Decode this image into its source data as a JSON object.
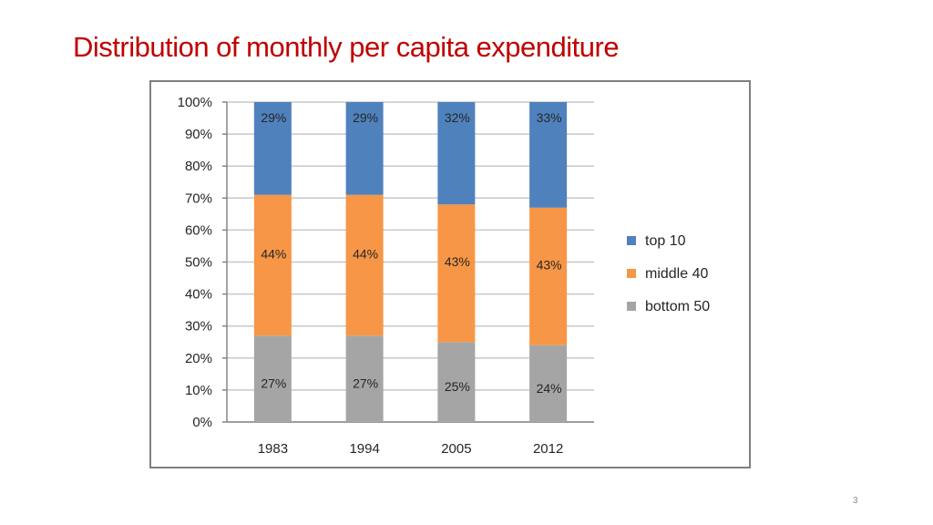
{
  "slide": {
    "title": "Distribution of monthly per capita expenditure",
    "page_number": "3"
  },
  "chart_data": {
    "type": "bar",
    "stacked": true,
    "title": "",
    "xlabel": "",
    "ylabel": "",
    "ylim": [
      0,
      100
    ],
    "y_ticks": [
      "0%",
      "10%",
      "20%",
      "30%",
      "40%",
      "50%",
      "60%",
      "70%",
      "80%",
      "90%",
      "100%"
    ],
    "grid": true,
    "legend_position": "right",
    "categories": [
      "1983",
      "1994",
      "2005",
      "2012"
    ],
    "series": [
      {
        "name": "bottom 50",
        "color": "#a5a5a5",
        "values": [
          27,
          27,
          25,
          24
        ],
        "labels": [
          "27%",
          "27%",
          "25%",
          "24%"
        ]
      },
      {
        "name": "middle 40",
        "color": "#f79646",
        "values": [
          44,
          44,
          43,
          43
        ],
        "labels": [
          "44%",
          "44%",
          "43%",
          "43%"
        ]
      },
      {
        "name": "top 10",
        "color": "#4f81bd",
        "values": [
          29,
          29,
          32,
          33
        ],
        "labels": [
          "29%",
          "29%",
          "32%",
          "33%"
        ]
      }
    ],
    "legend_order": [
      "top 10",
      "middle 40",
      "bottom 50"
    ]
  }
}
